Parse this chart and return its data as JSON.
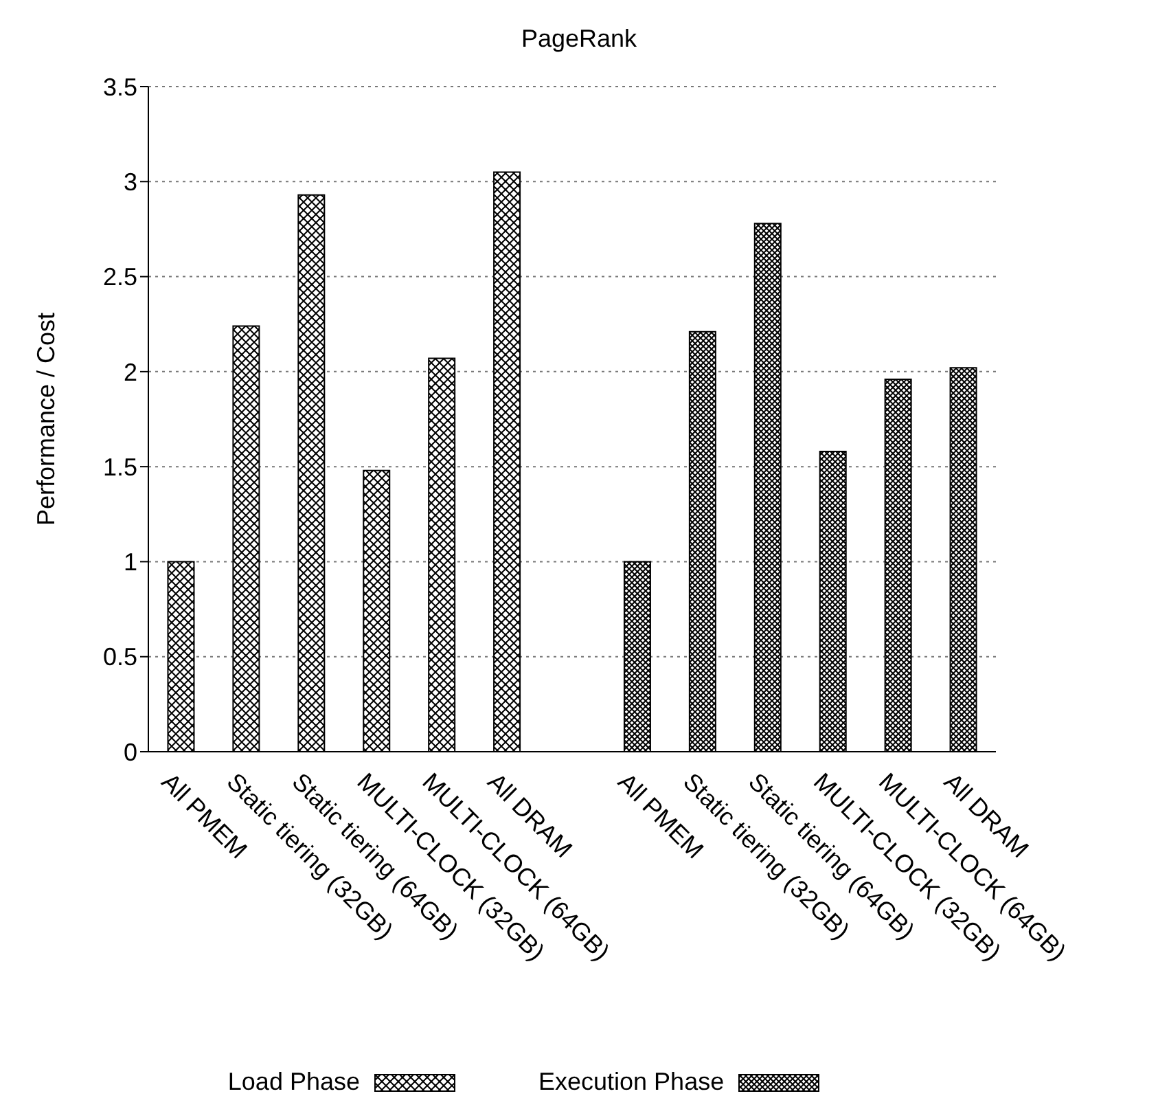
{
  "chart_data": {
    "type": "bar",
    "title": "PageRank",
    "ylabel": "Performance / Cost",
    "categories": [
      "All PMEM",
      "Static tiering (32GB)",
      "Static tiering (64GB)",
      "MULTI-CLOCK (32GB)",
      "MULTI-CLOCK (64GB)",
      "All DRAM",
      null,
      "All PMEM",
      "Static tiering (32GB)",
      "Static tiering (64GB)",
      "MULTI-CLOCK (32GB)",
      "MULTI-CLOCK (64GB)",
      "All DRAM"
    ],
    "series": [
      {
        "name": "Load Phase",
        "color": "#000000",
        "values": [
          1,
          2.24,
          2.93,
          1.48,
          2.07,
          3.05,
          null,
          null,
          null,
          null,
          null,
          null,
          null
        ]
      },
      {
        "name": "Execution Phase",
        "color": "#000000",
        "values": [
          null,
          null,
          null,
          null,
          null,
          null,
          null,
          1,
          2.21,
          2.78,
          1.58,
          1.96,
          2.02
        ]
      }
    ],
    "ylim": [
      0,
      3.5
    ],
    "yticks": [
      0,
      0.5,
      1,
      1.5,
      2,
      2.5,
      3,
      3.5
    ],
    "grid": "y",
    "legend": "bottom"
  }
}
